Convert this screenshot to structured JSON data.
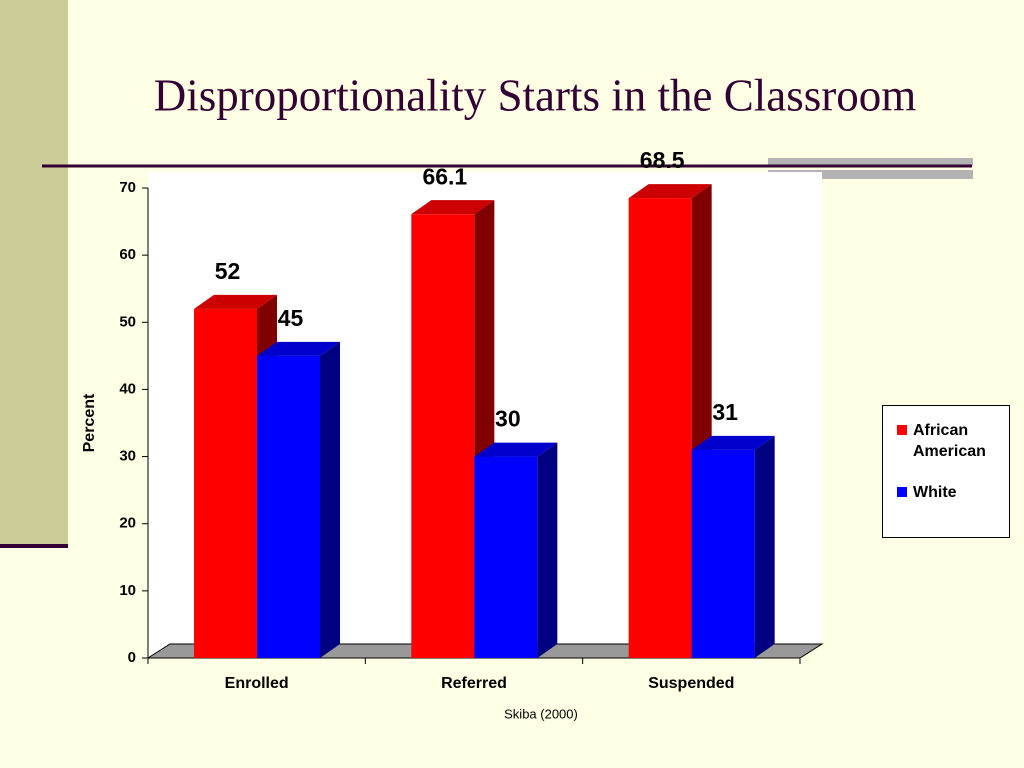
{
  "chart_data": {
    "type": "bar3d",
    "title": "Disproportionality Starts in the Classroom",
    "ylabel": "Percent",
    "note": "Skiba (2000)",
    "categories": [
      "Enrolled",
      "Referred",
      "Suspended"
    ],
    "series": [
      {
        "name": "African American",
        "color": "#ff0000",
        "side": "#800000",
        "values": [
          52,
          66.1,
          68.5
        ]
      },
      {
        "name": "White",
        "color": "#0000ff",
        "side": "#000080",
        "values": [
          45,
          30,
          31
        ]
      }
    ],
    "ylim": [
      0,
      70
    ],
    "yticks": [
      0,
      10,
      20,
      30,
      40,
      50,
      60,
      70
    ],
    "legend": "right"
  }
}
